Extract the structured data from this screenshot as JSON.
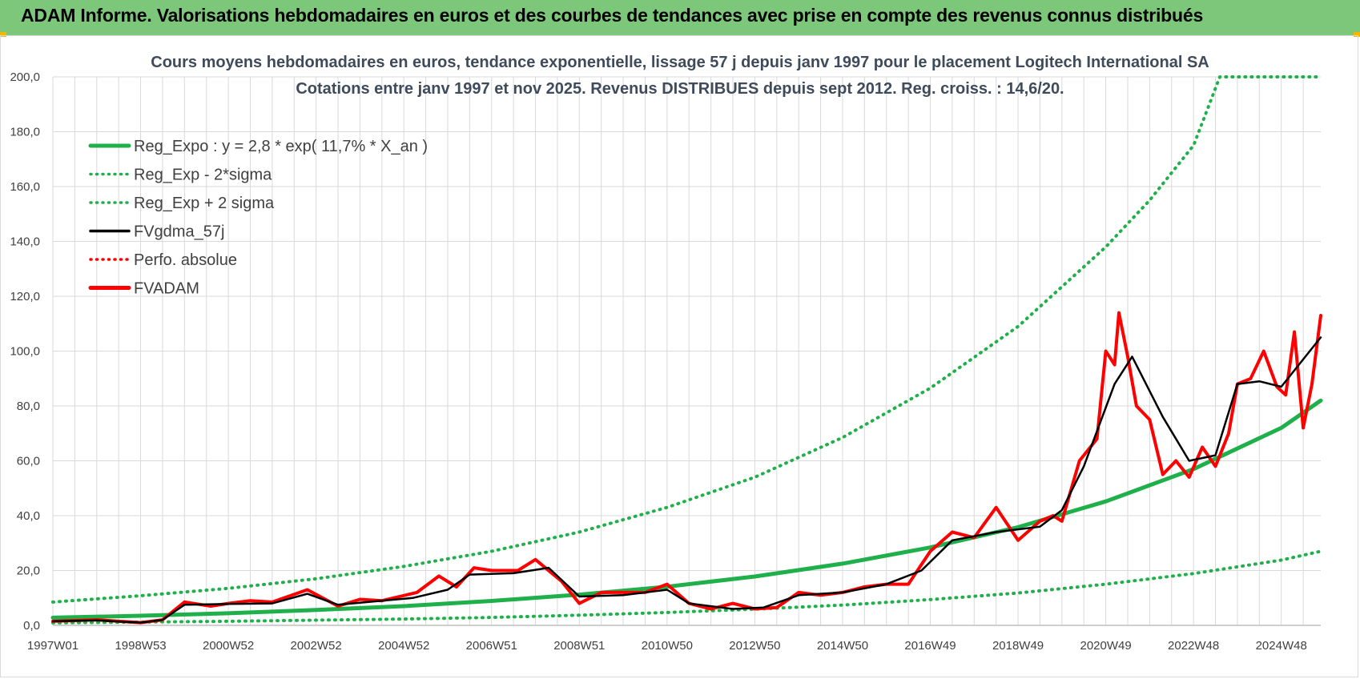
{
  "header": {
    "title": "ADAM Informe. Valorisations hebdomadaires en euros et des courbes de tendances avec prise en compte des revenus connus distribués"
  },
  "colors": {
    "header_bg": "#7dc77a",
    "reg_expo": "#1fb04b",
    "fvgdma": "#000000",
    "fvadam": "#ff0000",
    "perfo": "#ff0000",
    "grid": "#d9d9d9"
  },
  "chart_data": {
    "type": "line",
    "title_lines": [
      "Cours moyens hebdomadaires en euros, tendance exponentielle, lissage 57 j depuis janv 1997 pour le placement Logitech International SA",
      "Cotations entre janv 1997 et nov 2025. Revenus DISTRIBUES depuis sept 2012. Reg. croiss. : 14,6/20."
    ],
    "ylim": [
      0,
      200
    ],
    "y_ticks": [
      "0,0",
      "20,0",
      "40,0",
      "60,0",
      "80,0",
      "100,0",
      "120,0",
      "140,0",
      "160,0",
      "180,0",
      "200,0"
    ],
    "y_tick_values": [
      0,
      20,
      40,
      60,
      80,
      100,
      120,
      140,
      160,
      180,
      200
    ],
    "xlim": [
      1997.0,
      2025.9
    ],
    "x_ticks": [
      "1997W01",
      "1998W53",
      "2000W52",
      "2002W52",
      "2004W52",
      "2006W51",
      "2008W51",
      "2010W50",
      "2012W50",
      "2014W50",
      "2016W49",
      "2018W49",
      "2020W49",
      "2022W48",
      "2024W48"
    ],
    "x_tick_values": [
      1997.0,
      1999.0,
      2001.0,
      2003.0,
      2005.0,
      2007.0,
      2009.0,
      2011.0,
      2013.0,
      2015.0,
      2017.0,
      2019.0,
      2021.0,
      2023.0,
      2025.0
    ],
    "grid": true,
    "legend_position": "top-left",
    "legend": [
      {
        "name": "Reg_Expo : y = 2,8 * exp( 11,7% *  X_an )",
        "color": "#1fb04b",
        "style": "solid-thick"
      },
      {
        "name": "Reg_Exp - 2*sigma",
        "color": "#1fb04b",
        "style": "dotted"
      },
      {
        "name": "Reg_Exp + 2 sigma",
        "color": "#1fb04b",
        "style": "dotted"
      },
      {
        "name": "FVgdma_57j",
        "color": "#000000",
        "style": "solid"
      },
      {
        "name": "Perfo. absolue",
        "color": "#ff0000",
        "style": "dotted"
      },
      {
        "name": "FVADAM",
        "color": "#ff0000",
        "style": "solid-thick"
      }
    ],
    "series": [
      {
        "name": "Reg_Expo : y = 2,8 * exp( 11,7% *  X_an )",
        "x": [
          1997,
          1999,
          2001,
          2003,
          2005,
          2007,
          2009,
          2011,
          2013,
          2015,
          2017,
          2019,
          2021,
          2023,
          2025,
          2025.9
        ],
        "values": [
          2.8,
          3.5,
          4.4,
          5.6,
          7.0,
          8.9,
          11.2,
          14.1,
          17.8,
          22.5,
          28.4,
          35.8,
          45.2,
          57.0,
          72.0,
          82.0
        ]
      },
      {
        "name": "Reg_Exp - 2*sigma",
        "x": [
          1997,
          1999,
          2001,
          2003,
          2005,
          2007,
          2009,
          2011,
          2013,
          2015,
          2017,
          2019,
          2021,
          2023,
          2025,
          2025.9
        ],
        "values": [
          0.9,
          1.2,
          1.5,
          1.9,
          2.3,
          2.9,
          3.7,
          4.7,
          5.9,
          7.4,
          9.4,
          11.8,
          15.0,
          18.9,
          23.8,
          27.0
        ]
      },
      {
        "name": "Reg_Exp + 2 sigma",
        "x": [
          1997,
          1999,
          2001,
          2003,
          2005,
          2007,
          2009,
          2011,
          2013,
          2015,
          2017,
          2019,
          2021,
          2022,
          2023,
          2023.6,
          2025.9
        ],
        "values": [
          8.5,
          10.8,
          13.5,
          17.0,
          21.5,
          27.0,
          34.0,
          43.0,
          54.0,
          68.5,
          86.5,
          109.0,
          138.0,
          155.0,
          175.0,
          200.0,
          200.0
        ]
      },
      {
        "name": "FVgdma_57j",
        "x": [
          1997,
          1998,
          1999,
          1999.5,
          2000,
          2001,
          2002,
          2002.8,
          2003.5,
          2004.5,
          2005.2,
          2006,
          2006.5,
          2007.5,
          2008.3,
          2009,
          2010,
          2011,
          2011.5,
          2012.5,
          2013.2,
          2014,
          2015,
          2016,
          2016.8,
          2017.5,
          2018.5,
          2019.5,
          2020,
          2020.5,
          2021.2,
          2021.6,
          2022.3,
          2022.9,
          2023.5,
          2024,
          2024.5,
          2025,
          2025.9
        ],
        "values": [
          1.5,
          1.8,
          1.0,
          2.0,
          7.5,
          7.8,
          8.0,
          11.5,
          7.5,
          9.0,
          10.0,
          13.0,
          18.5,
          19.0,
          21.0,
          10.5,
          11.0,
          13.0,
          8.0,
          6.0,
          6.5,
          11.0,
          12.0,
          15.0,
          20.0,
          31.0,
          34.0,
          36.0,
          42.0,
          58.0,
          88.0,
          98.0,
          76.0,
          60.0,
          62.0,
          88.0,
          89.0,
          87.0,
          105.0
        ]
      },
      {
        "name": "FVADAM",
        "x": [
          1997,
          1998,
          1999,
          1999.5,
          2000,
          2000.6,
          2001,
          2001.5,
          2002,
          2002.8,
          2003.5,
          2004,
          2004.5,
          2005.3,
          2005.8,
          2006.2,
          2006.6,
          2007,
          2007.6,
          2008,
          2008.6,
          2009,
          2009.5,
          2010,
          2010.5,
          2011,
          2011.5,
          2012,
          2012.5,
          2013,
          2013.5,
          2014,
          2014.5,
          2015,
          2015.5,
          2016,
          2016.5,
          2017,
          2017.5,
          2018,
          2018.5,
          2019,
          2019.5,
          2019.8,
          2020,
          2020.4,
          2020.8,
          2021.0,
          2021.2,
          2021.3,
          2021.5,
          2021.7,
          2022.0,
          2022.3,
          2022.6,
          2022.9,
          2023.2,
          2023.5,
          2023.8,
          2024.0,
          2024.3,
          2024.6,
          2024.9,
          2025.1,
          2025.3,
          2025.5,
          2025.7,
          2025.9
        ],
        "values": [
          1.5,
          2.0,
          1.0,
          2.0,
          8.5,
          7.0,
          8.0,
          9.0,
          8.5,
          13.0,
          7.0,
          9.5,
          9.0,
          12.0,
          18.0,
          14.0,
          21.0,
          20.0,
          20.0,
          24.0,
          16.0,
          8.0,
          12.0,
          12.0,
          12.0,
          15.0,
          8.0,
          6.0,
          8.0,
          6.0,
          6.5,
          12.0,
          11.0,
          12.0,
          14.0,
          15.0,
          15.0,
          27.0,
          34.0,
          32.0,
          43.0,
          31.0,
          38.0,
          40.0,
          38.0,
          60.0,
          68.0,
          100.0,
          95.0,
          114.0,
          98.0,
          80.0,
          75.0,
          55.0,
          60.0,
          54.0,
          65.0,
          58.0,
          70.0,
          88.0,
          90.0,
          100.0,
          87.0,
          84.0,
          107.0,
          72.0,
          88.0,
          113.0
        ]
      }
    ]
  }
}
